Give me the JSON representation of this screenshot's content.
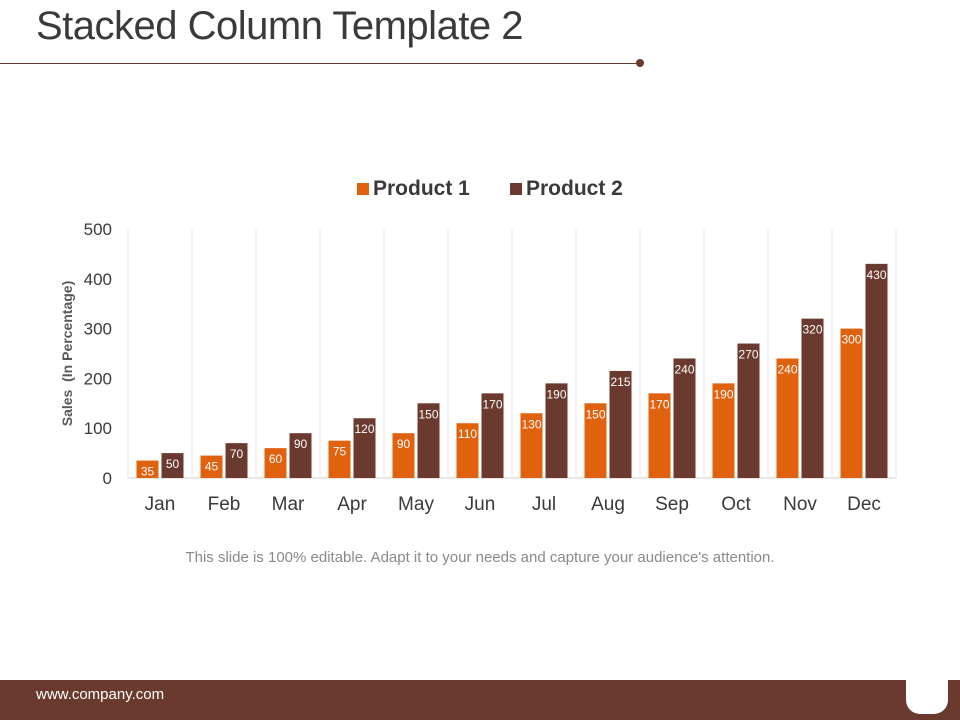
{
  "slide": {
    "title": "Stacked Column Template 2",
    "caption": "This slide is 100% editable. Adapt it to your needs and capture your audience's attention.",
    "footer_url": "www.company.com"
  },
  "colors": {
    "accent": "#6b3a2e",
    "product1": "#e0610e",
    "product2": "#6b3a2e"
  },
  "chart_data": {
    "type": "bar",
    "title": "",
    "xlabel": "",
    "ylabel": "Sales  (In Percentage)",
    "ylim": [
      0,
      500
    ],
    "yticks": [
      0,
      100,
      200,
      300,
      400,
      500
    ],
    "grid": "vertical",
    "legend": "top-center",
    "categories": [
      "Jan",
      "Feb",
      "Mar",
      "Apr",
      "May",
      "Jun",
      "Jul",
      "Aug",
      "Sep",
      "Oct",
      "Nov",
      "Dec"
    ],
    "series": [
      {
        "name": "Product 1",
        "color": "#e0610e",
        "values": [
          35,
          45,
          60,
          75,
          90,
          110,
          130,
          150,
          170,
          190,
          240,
          300
        ]
      },
      {
        "name": "Product 2",
        "color": "#6b3a2e",
        "values": [
          50,
          70,
          90,
          120,
          150,
          170,
          190,
          215,
          240,
          270,
          320,
          430
        ]
      }
    ]
  }
}
